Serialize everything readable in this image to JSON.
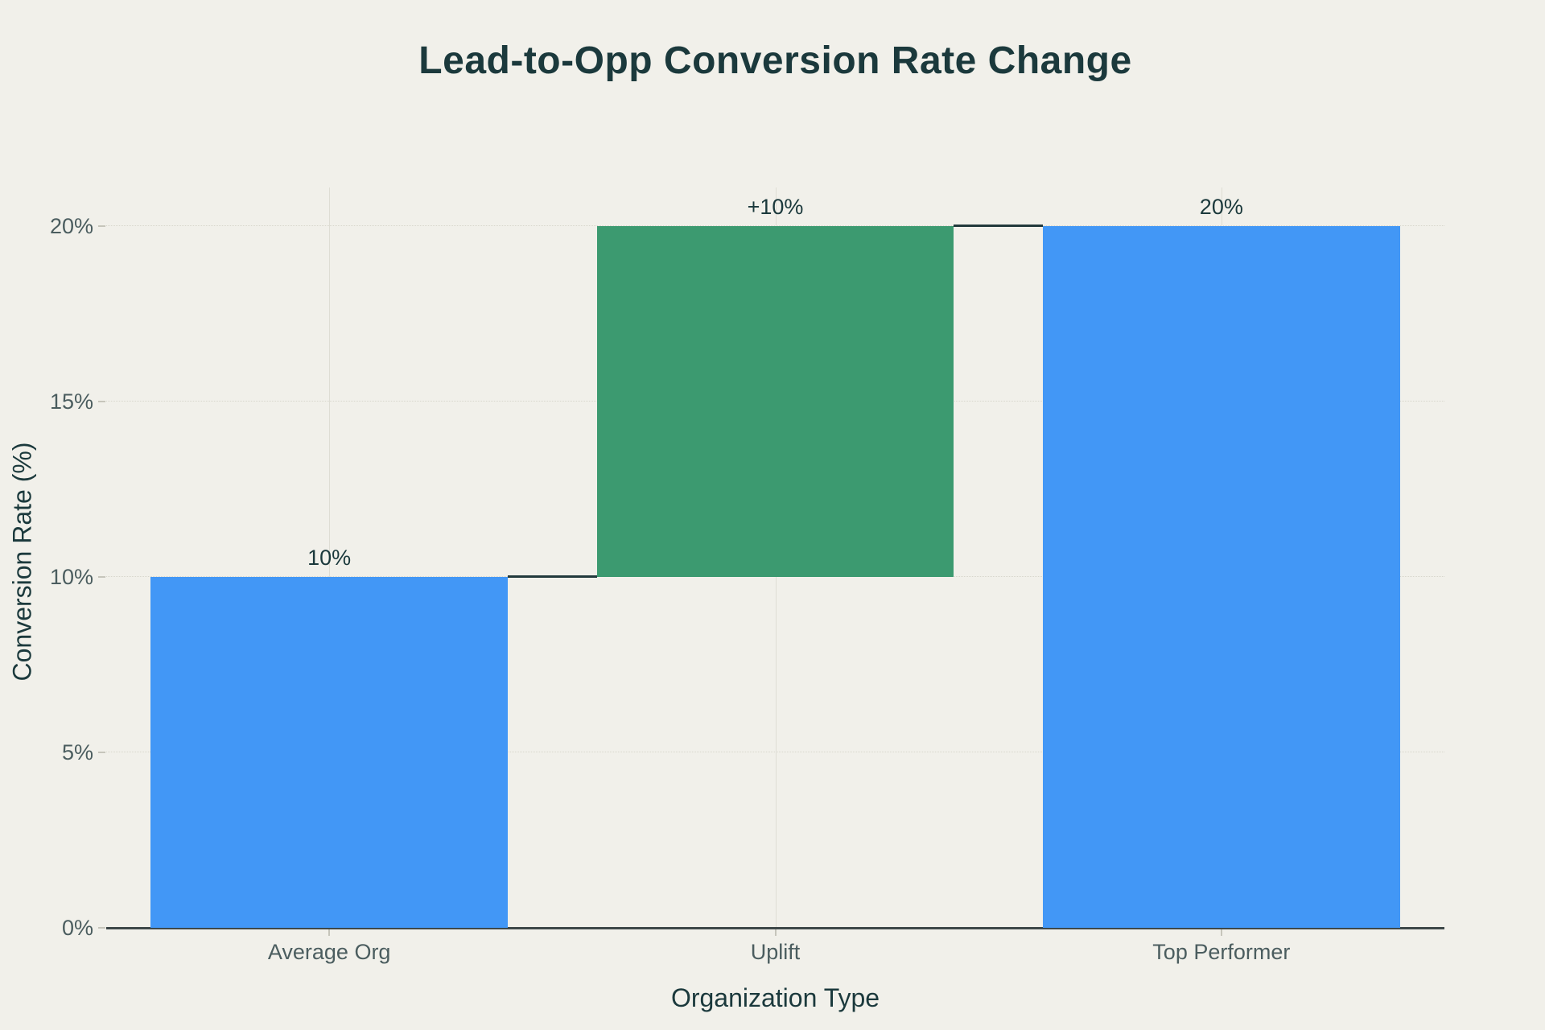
{
  "title": "Lead-to-Opp Conversion Rate Change",
  "colors": {
    "background": "#F1F0EA",
    "bar_blue": "#4297F6",
    "bar_green": "#3C9A70",
    "text_dark": "#1B393C",
    "text_tick": "#4B5D5F",
    "gridline": "#D7D6CC",
    "gridline_vertical": "#DEDDD4",
    "axis_line": "#3E4849",
    "tick_mark": "#C6C5BB",
    "connector": "#22393C"
  },
  "chart_data": {
    "type": "bar",
    "variant": "waterfall",
    "title": "Lead-to-Opp Conversion Rate Change",
    "xlabel": "Organization Type",
    "ylabel": "Conversion Rate (%)",
    "categories": [
      "Average Org",
      "Uplift",
      "Top Performer"
    ],
    "bars": [
      {
        "category": "Average Org",
        "base": 0,
        "value": 10,
        "label": "10%",
        "color_key": "bar_blue"
      },
      {
        "category": "Uplift",
        "base": 10,
        "value": 10,
        "label": "+10%",
        "color_key": "bar_green"
      },
      {
        "category": "Top Performer",
        "base": 0,
        "value": 20,
        "label": "20%",
        "color_key": "bar_blue"
      }
    ],
    "connectors": [
      {
        "from": 0,
        "to": 1,
        "level": 10
      },
      {
        "from": 1,
        "to": 2,
        "level": 20
      }
    ],
    "y_ticks": [
      {
        "value": 0,
        "label": "0%"
      },
      {
        "value": 5,
        "label": "5%"
      },
      {
        "value": 10,
        "label": "10%"
      },
      {
        "value": 15,
        "label": "15%"
      },
      {
        "value": 20,
        "label": "20%"
      }
    ],
    "ylim": [
      0,
      21.1
    ],
    "grid": true,
    "legend": false
  }
}
